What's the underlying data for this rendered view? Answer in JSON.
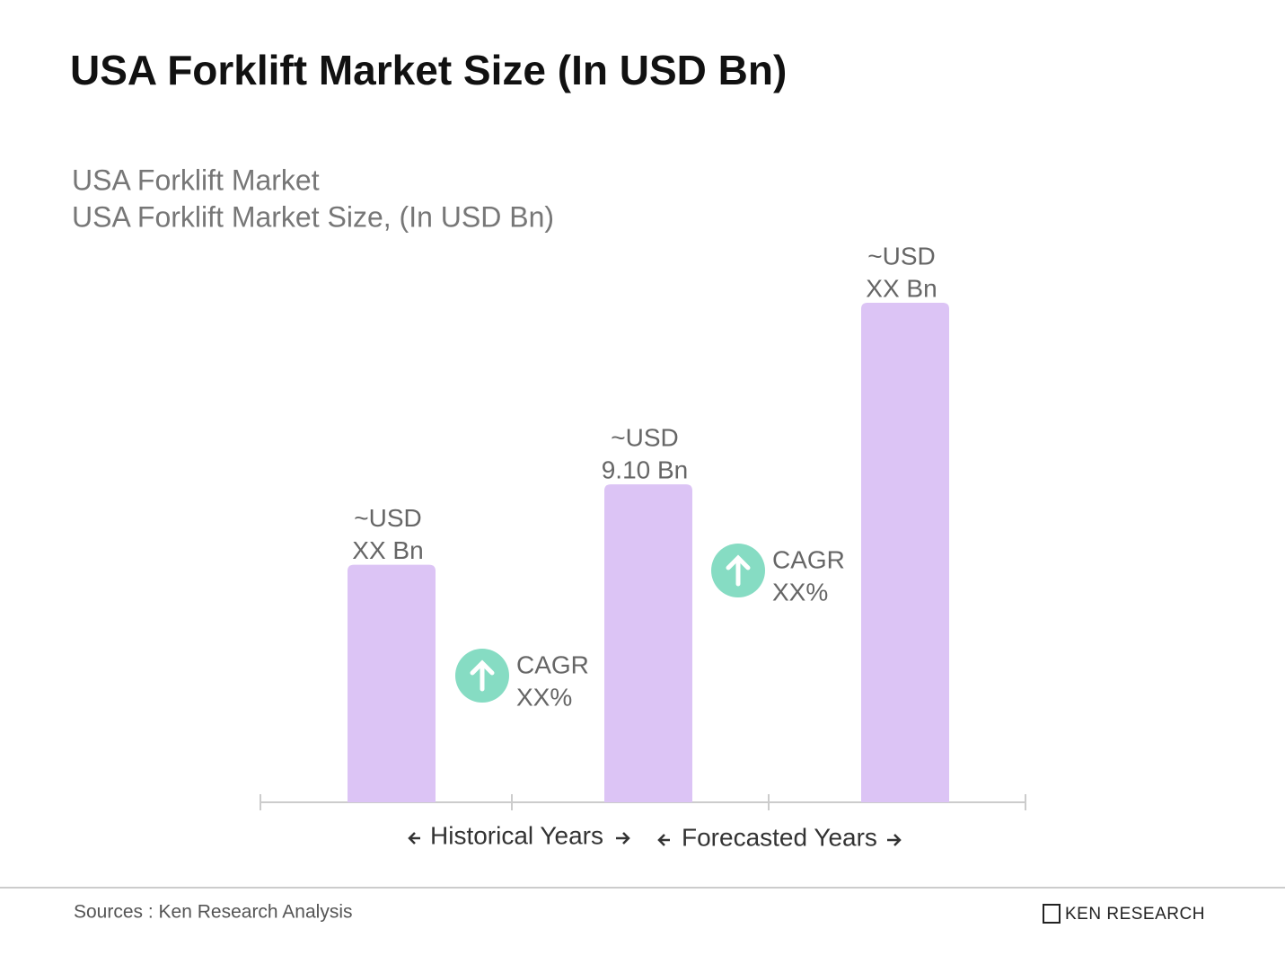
{
  "chart_data": {
    "type": "bar",
    "title": "USA Forklift Market Size (In USD Bn)",
    "subtitle": [
      "USA Forklift Market",
      "USA Forklift Market Size, (In USD Bn)"
    ],
    "categories": [
      null,
      null,
      null
    ],
    "values": [
      6.8,
      9.1,
      14.3
    ],
    "value_labels": [
      [
        "~USD",
        "XX Bn"
      ],
      [
        "~USD",
        "9.10 Bn"
      ],
      [
        "~USD",
        "XX Bn"
      ]
    ],
    "color": "#dcc4f5",
    "annotations": [
      {
        "lines": [
          "CAGR",
          "XX%"
        ],
        "color": "#86dcc3"
      },
      {
        "lines": [
          "CAGR",
          "XX%"
        ],
        "color": "#86dcc3"
      }
    ],
    "x_sections": [
      "Historical Years",
      "Forecasted Years"
    ]
  },
  "footer": {
    "source": "Sources : Ken Research Analysis",
    "logo": "KEN RESEARCH"
  }
}
